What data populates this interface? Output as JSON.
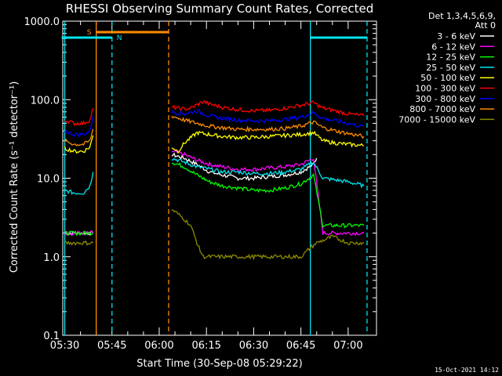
{
  "chart_data": {
    "type": "line",
    "title": "RHESSI Observing Summary Count Rates, Corrected",
    "xlabel": "Start Time (30-Sep-08 05:29:22)",
    "ylabel": "Corrected Count Rate (s⁻¹ detector⁻¹)",
    "y_scale": "log",
    "ylim": [
      0.1,
      1000
    ],
    "xlim": [
      "05:29:22",
      "07:09:00"
    ],
    "x_ticks": [
      "05:30",
      "05:45",
      "06:00",
      "06:15",
      "06:30",
      "06:45",
      "07:00"
    ],
    "y_ticks": [
      "0.1",
      "1.0",
      "10.0",
      "100.0",
      "1000.0"
    ],
    "legend": {
      "placement": "right",
      "header": [
        "Det 1,3,4,5,6,9,",
        "Att 0"
      ]
    },
    "flags": [
      {
        "label": "S",
        "start": "05:40",
        "end": "06:03",
        "color": "#ff8c00"
      },
      {
        "label": "N",
        "start": "05:29",
        "end": "05:45",
        "color": "#00e5ee"
      },
      {
        "label": "",
        "start": "06:48",
        "end": "07:06",
        "color": "#00e5ee"
      }
    ],
    "vlines": [
      {
        "time": "05:30",
        "color": "#00e5ee",
        "style": "solid"
      },
      {
        "time": "05:40",
        "color": "#ff8c00",
        "style": "solid"
      },
      {
        "time": "05:45",
        "color": "#00e5ee",
        "style": "dashed"
      },
      {
        "time": "06:03",
        "color": "#ff8c00",
        "style": "dashed"
      },
      {
        "time": "06:48",
        "color": "#00e5ee",
        "style": "solid"
      },
      {
        "time": "07:06",
        "color": "#00e5ee",
        "style": "dashed"
      }
    ],
    "series": [
      {
        "name": "3 - 6 keV",
        "color": "#ffffff",
        "segments": [
          {
            "x": [
              "05:30",
              "05:33",
              "05:36",
              "05:38",
              "05:39"
            ],
            "y": [
              2,
              2,
              2,
              2,
              2
            ]
          },
          {
            "x": [
              "06:04",
              "06:08",
              "06:12",
              "06:16",
              "06:20",
              "06:25",
              "06:30",
              "06:35",
              "06:40",
              "06:45",
              "06:49",
              "06:50"
            ],
            "y": [
              20,
              18,
              15,
              12,
              11,
              10,
              10,
              10.5,
              11,
              12,
              15,
              18
            ]
          }
        ]
      },
      {
        "name": "6 - 12 keV",
        "color": "#ff00ff",
        "segments": [
          {
            "x": [
              "05:30",
              "05:33",
              "05:36",
              "05:39"
            ],
            "y": [
              2,
              2,
              2,
              2
            ]
          },
          {
            "x": [
              "06:04",
              "06:08",
              "06:12",
              "06:16",
              "06:20",
              "06:25",
              "06:30",
              "06:35",
              "06:40",
              "06:45",
              "06:49",
              "06:52",
              "06:56",
              "07:00",
              "07:05"
            ],
            "y": [
              22,
              20,
              17,
              15,
              14,
              13,
              13,
              13.5,
              14,
              15,
              18,
              2,
              2,
              2,
              2
            ]
          }
        ]
      },
      {
        "name": "12 - 25 keV",
        "color": "#00ff00",
        "segments": [
          {
            "x": [
              "05:30",
              "05:33",
              "05:36",
              "05:39"
            ],
            "y": [
              2,
              2,
              2,
              2
            ]
          },
          {
            "x": [
              "06:04",
              "06:08",
              "06:12",
              "06:16",
              "06:20",
              "06:25",
              "06:30",
              "06:35",
              "06:40",
              "06:45",
              "06:49",
              "06:52",
              "06:56",
              "07:00",
              "07:05"
            ],
            "y": [
              16,
              14,
              11,
              9,
              8,
              7.5,
              7,
              7,
              7.5,
              8.5,
              11,
              2.5,
              2.5,
              2.5,
              2.5
            ]
          }
        ]
      },
      {
        "name": "25 - 50 keV",
        "color": "#00e5ee",
        "segments": [
          {
            "x": [
              "05:30",
              "05:33",
              "05:36",
              "05:38",
              "05:39"
            ],
            "y": [
              7,
              6.5,
              6.5,
              8,
              12
            ]
          },
          {
            "x": [
              "06:04",
              "06:08",
              "06:12",
              "06:16",
              "06:20",
              "06:25",
              "06:30",
              "06:35",
              "06:40",
              "06:45",
              "06:49",
              "06:52",
              "06:56",
              "07:00",
              "07:05"
            ],
            "y": [
              18,
              16,
              14,
              13,
              12,
              12,
              11.5,
              11.5,
              12,
              13,
              16,
              10,
              9.5,
              9,
              8
            ]
          }
        ]
      },
      {
        "name": "50 - 100 keV",
        "color": "#ffff00",
        "segments": [
          {
            "x": [
              "05:30",
              "05:33",
              "05:36",
              "05:38",
              "05:39"
            ],
            "y": [
              24,
              22,
              22,
              25,
              35
            ]
          },
          {
            "x": [
              "06:04",
              "06:06",
              "06:08",
              "06:12",
              "06:16",
              "06:20",
              "06:25",
              "06:30",
              "06:35",
              "06:40",
              "06:45",
              "06:49",
              "06:52",
              "06:56",
              "07:00",
              "07:05"
            ],
            "y": [
              25,
              22,
              28,
              38,
              36,
              34,
              33,
              33,
              34,
              35,
              36,
              38,
              30,
              28,
              27,
              26
            ]
          }
        ]
      },
      {
        "name": "100 - 300 keV",
        "color": "#ff0000",
        "segments": [
          {
            "x": [
              "05:30",
              "05:33",
              "05:36",
              "05:38",
              "05:39"
            ],
            "y": [
              55,
              50,
              50,
              55,
              78
            ]
          },
          {
            "x": [
              "06:04",
              "06:08",
              "06:10",
              "06:14",
              "06:16",
              "06:20",
              "06:25",
              "06:30",
              "06:35",
              "06:40",
              "06:45",
              "06:49",
              "06:52",
              "06:56",
              "07:00",
              "07:05"
            ],
            "y": [
              80,
              76,
              78,
              95,
              88,
              80,
              75,
              72,
              73,
              78,
              85,
              92,
              78,
              72,
              66,
              62
            ]
          }
        ]
      },
      {
        "name": "300 - 800 keV",
        "color": "#0000ff",
        "segments": [
          {
            "x": [
              "05:30",
              "05:33",
              "05:36",
              "05:38",
              "05:39"
            ],
            "y": [
              40,
              36,
              36,
              40,
              62
            ]
          },
          {
            "x": [
              "06:04",
              "06:08",
              "06:12",
              "06:16",
              "06:20",
              "06:25",
              "06:30",
              "06:35",
              "06:40",
              "06:45",
              "06:49",
              "06:52",
              "06:56",
              "07:00",
              "07:05"
            ],
            "y": [
              70,
              66,
              72,
              62,
              58,
              55,
              54,
              54,
              56,
              60,
              68,
              58,
              54,
              50,
              45
            ]
          }
        ]
      },
      {
        "name": "800 - 7000 keV",
        "color": "#ff8c00",
        "segments": [
          {
            "x": [
              "05:30",
              "05:33",
              "05:36",
              "05:38",
              "05:39"
            ],
            "y": [
              30,
              27,
              27,
              30,
              42
            ]
          },
          {
            "x": [
              "06:04",
              "06:08",
              "06:12",
              "06:16",
              "06:20",
              "06:25",
              "06:30",
              "06:35",
              "06:40",
              "06:45",
              "06:49",
              "06:52",
              "06:56",
              "07:00",
              "07:05"
            ],
            "y": [
              62,
              55,
              50,
              46,
              44,
              42,
              42,
              42,
              43,
              46,
              52,
              44,
              40,
              37,
              34
            ]
          }
        ]
      },
      {
        "name": "7000 - 15000 keV",
        "color": "#8b8b00",
        "segments": [
          {
            "x": [
              "05:30",
              "05:33",
              "05:36",
              "05:39"
            ],
            "y": [
              1.5,
              1.5,
              1.5,
              1.5
            ]
          },
          {
            "x": [
              "06:04",
              "06:06",
              "06:08",
              "06:10",
              "06:12",
              "06:13",
              "06:14",
              "06:30",
              "06:45",
              "06:48",
              "06:50",
              "06:55",
              "07:00",
              "07:05"
            ],
            "y": [
              4,
              3.5,
              3,
              2.5,
              1.5,
              1.2,
              1.0,
              1.0,
              1.0,
              1.3,
              1.5,
              1.8,
              1.5,
              1.5
            ]
          }
        ]
      }
    ],
    "footer_date": "15-Oct-2021 14:12"
  }
}
